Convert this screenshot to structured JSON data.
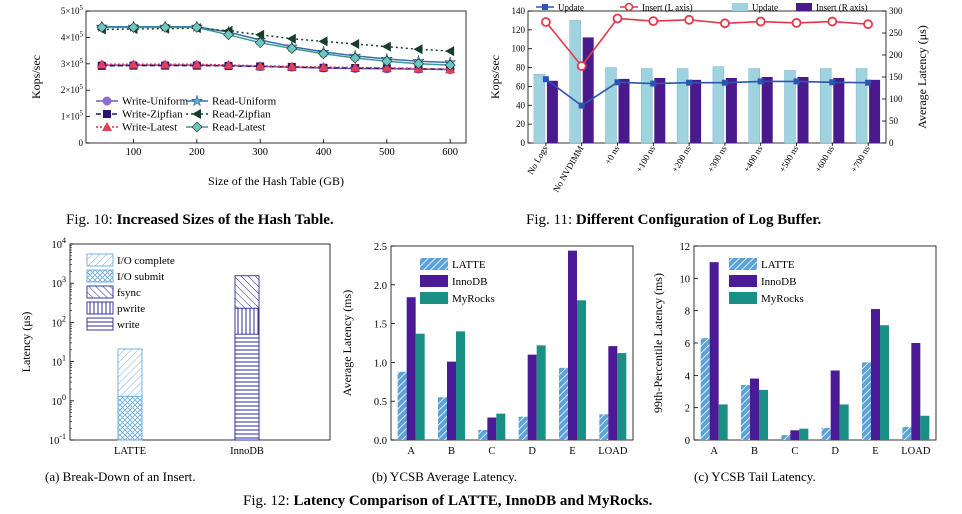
{
  "colors": {
    "latte": "#5aa2d8",
    "innodb": "#4b1a96",
    "myrocks": "#1a8f86",
    "write": "#7a58c6",
    "read": "#2a6e64",
    "update": "#9fd3df",
    "insert": "#4a1a8c",
    "update_line": "#2a55b5",
    "insert_line": "#e23a4d"
  },
  "captions": {
    "fig10_prefix": "Fig. 10:",
    "fig10_title": "Increased Sizes of the Hash Table.",
    "fig11_prefix": "Fig. 11:",
    "fig11_title": "Different Configuration of Log Buffer.",
    "fig12_prefix": "Fig. 12:",
    "fig12_title": "Latency Comparison of LATTE, InnoDB and MyRocks.",
    "sub_a": "(a) Break-Down of an Insert.",
    "sub_b": "(b) YCSB Average Latency.",
    "sub_c": "(c) YCSB Tail Latency."
  },
  "chart_data": [
    {
      "id": "fig10",
      "type": "line",
      "xlabel": "Size of the Hash Table (GB)",
      "ylabel": "Kops/sec",
      "x": [
        50,
        100,
        150,
        200,
        250,
        300,
        350,
        400,
        450,
        500,
        550,
        600
      ],
      "xlim": [
        25,
        625
      ],
      "ylim": [
        0,
        500000
      ],
      "xticks": [
        "100",
        "200",
        "300",
        "400",
        "500",
        "600"
      ],
      "yticks": [
        "0",
        "1x10^5",
        "2x10^5",
        "3x10^5",
        "4x10^5",
        "5x10^5"
      ],
      "series": [
        {
          "name": "Write-Uniform",
          "values": [
            295000,
            295000,
            295000,
            295000,
            293000,
            290000,
            287000,
            284000,
            282000,
            281000,
            280000,
            278000
          ]
        },
        {
          "name": "Write-Zipfian",
          "values": [
            292000,
            293000,
            293000,
            293000,
            292000,
            290000,
            288000,
            285000,
            284000,
            283000,
            281000,
            279000
          ]
        },
        {
          "name": "Write-Latest",
          "values": [
            298000,
            298000,
            298000,
            298000,
            296000,
            292000,
            290000,
            288000,
            286000,
            285000,
            282000,
            280000
          ]
        },
        {
          "name": "Read-Uniform",
          "values": [
            440000,
            440000,
            440000,
            440000,
            420000,
            390000,
            365000,
            345000,
            330000,
            318000,
            310000,
            305000
          ]
        },
        {
          "name": "Read-Zipfian",
          "values": [
            430000,
            432000,
            433000,
            435000,
            425000,
            410000,
            395000,
            385000,
            375000,
            365000,
            355000,
            348000
          ]
        },
        {
          "name": "Read-Latest",
          "values": [
            438000,
            438000,
            438000,
            438000,
            410000,
            380000,
            358000,
            338000,
            322000,
            310000,
            300000,
            295000
          ]
        }
      ]
    },
    {
      "id": "fig11",
      "type": "bar",
      "ylabel": "Kops/sec",
      "ylabel_right": "Average Latency (μs)",
      "categories": [
        "No Logs",
        "No NVDIMM",
        "+0 ns",
        "+100 ns",
        "+200 ns",
        "+300 ns",
        "+400 ns",
        "+500 ns",
        "+600 ns",
        "+700 ns"
      ],
      "ylim": [
        0,
        140
      ],
      "ylim_right": [
        0,
        300
      ],
      "yticks": [
        "0",
        "20",
        "40",
        "60",
        "80",
        "100",
        "120",
        "140"
      ],
      "yticks_right": [
        "0",
        "50",
        "100",
        "150",
        "200",
        "250",
        "300"
      ],
      "legend": [
        "Update",
        "Insert (L axis)",
        "Update",
        "Insert (R axis)"
      ],
      "series": [
        {
          "name": "Update",
          "values": [
            73,
            130,
            80,
            79,
            79,
            81,
            79,
            77,
            79,
            79
          ]
        },
        {
          "name": "Insert",
          "values": [
            66,
            112,
            68,
            69,
            67,
            69,
            70,
            70,
            69,
            67
          ]
        },
        {
          "name": "Update",
          "values": [
            145,
            85,
            138,
            135,
            137,
            137,
            140,
            140,
            138,
            137
          ]
        },
        {
          "name": "Insert",
          "values": [
            275,
            175,
            283,
            277,
            280,
            272,
            276,
            273,
            276,
            270
          ]
        }
      ]
    },
    {
      "id": "fig12a",
      "type": "bar",
      "ylabel": "Latency (μs)",
      "categories": [
        "LATTE",
        "InnoDB"
      ],
      "yscale": "log",
      "ylim": [
        0.1,
        10000
      ],
      "yticks_exp": [
        "-1",
        "0",
        "1",
        "2",
        "3",
        "4"
      ],
      "series": [
        {
          "name": "I/O complete",
          "values": [
            21,
            0
          ]
        },
        {
          "name": "I/O submit",
          "values": [
            1.3,
            0
          ]
        },
        {
          "name": "fsync",
          "values": [
            0,
            1550
          ]
        },
        {
          "name": "pwrite",
          "values": [
            0,
            230
          ]
        },
        {
          "name": "write",
          "values": [
            0,
            50
          ]
        }
      ]
    },
    {
      "id": "fig12b",
      "type": "bar",
      "ylabel": "Average Latency (ms)",
      "categories": [
        "A",
        "B",
        "C",
        "D",
        "E",
        "LOAD"
      ],
      "ylim": [
        0,
        2.5
      ],
      "yticks": [
        "0.0",
        "0.5",
        "1.0",
        "1.5",
        "2.0",
        "2.5"
      ],
      "series": [
        {
          "name": "LATTE",
          "values": [
            0.88,
            0.55,
            0.13,
            0.3,
            0.93,
            0.33
          ]
        },
        {
          "name": "InnoDB",
          "values": [
            1.84,
            1.01,
            0.29,
            1.1,
            2.44,
            1.21
          ]
        },
        {
          "name": "MyRocks",
          "values": [
            1.37,
            1.4,
            0.34,
            1.22,
            1.8,
            1.12
          ]
        }
      ]
    },
    {
      "id": "fig12c",
      "type": "bar",
      "ylabel": "99th-Percentile Latency (ms)",
      "categories": [
        "A",
        "B",
        "C",
        "D",
        "E",
        "LOAD"
      ],
      "ylim": [
        0,
        12
      ],
      "yticks": [
        "0",
        "2",
        "4",
        "6",
        "8",
        "10",
        "12"
      ],
      "series": [
        {
          "name": "LATTE",
          "values": [
            6.3,
            3.4,
            0.3,
            0.75,
            4.8,
            0.8
          ]
        },
        {
          "name": "InnoDB",
          "values": [
            11.0,
            3.8,
            0.6,
            4.3,
            8.1,
            6.0
          ]
        },
        {
          "name": "MyRocks",
          "values": [
            2.2,
            3.1,
            0.7,
            2.2,
            7.1,
            1.5
          ]
        }
      ]
    }
  ]
}
